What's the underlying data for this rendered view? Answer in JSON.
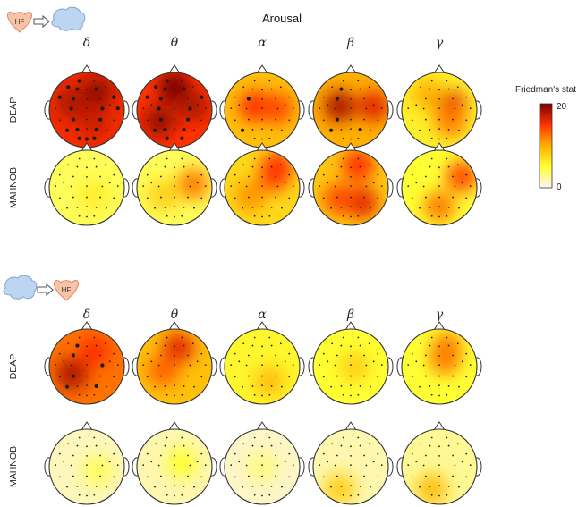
{
  "title": "Arousal",
  "bands": [
    "δ",
    "θ",
    "α",
    "β",
    "γ"
  ],
  "datasets": [
    "DEAP",
    "MAHNOB"
  ],
  "directions": [
    {
      "from": "HF",
      "to": "brain"
    },
    {
      "from": "brain",
      "to": "HF"
    }
  ],
  "colorbar": {
    "label": "Friedman's stat",
    "min": 0,
    "max": 20,
    "stops": [
      "#fdf3f6",
      "#ffff33",
      "#ffb000",
      "#ff3300",
      "#7a0000"
    ]
  },
  "chart_data": {
    "type": "heatmap",
    "title": "Arousal",
    "bands": [
      "δ",
      "θ",
      "α",
      "β",
      "γ"
    ],
    "datasets": [
      "DEAP",
      "MAHNOB"
    ],
    "value_range": [
      0,
      20
    ],
    "panels": [
      {
        "direction": "HF → brain",
        "DEAP": [
          {
            "mean": 15.5,
            "blobs": [
              [
                0.3,
                0.5,
                19
              ],
              [
                -0.4,
                0.2,
                18
              ],
              [
                0.2,
                -0.3,
                17
              ]
            ],
            "sig": 18
          },
          {
            "mean": 15,
            "blobs": [
              [
                0,
                0.6,
                20
              ],
              [
                -0.4,
                -0.3,
                19
              ],
              [
                0.5,
                0.1,
                18
              ]
            ],
            "sig": 16
          },
          {
            "mean": 9,
            "blobs": [
              [
                -0.2,
                0.1,
                15
              ],
              [
                0.4,
                0.05,
                14
              ]
            ],
            "sig": 2
          },
          {
            "mean": 10,
            "blobs": [
              [
                -0.3,
                0.1,
                18
              ],
              [
                0.6,
                0.1,
                16
              ]
            ],
            "sig": 5
          },
          {
            "mean": 6,
            "blobs": [
              [
                0.3,
                0.1,
                16
              ],
              [
                0.3,
                -0.3,
                12
              ],
              [
                -0.3,
                0.4,
                10
              ]
            ],
            "sig": 0
          }
        ],
        "MAHNOB": [
          {
            "mean": 4,
            "blobs": [
              [
                0.2,
                -0.2,
                6
              ]
            ],
            "sig": 0
          },
          {
            "mean": 4,
            "blobs": [
              [
                0.5,
                0.1,
                12
              ],
              [
                -0.3,
                -0.2,
                8
              ]
            ],
            "sig": 0
          },
          {
            "mean": 7.5,
            "blobs": [
              [
                0.3,
                0.3,
                14
              ],
              [
                0.4,
                0.55,
                15
              ],
              [
                -0.3,
                -0.2,
                11
              ]
            ],
            "sig": 0
          },
          {
            "mean": 8.5,
            "blobs": [
              [
                0.3,
                -0.4,
                16
              ],
              [
                0.2,
                0.6,
                15
              ],
              [
                -0.3,
                -0.3,
                14
              ]
            ],
            "sig": 0
          },
          {
            "mean": 5,
            "blobs": [
              [
                0.0,
                -0.5,
                12
              ],
              [
                0.6,
                0.3,
                14
              ]
            ],
            "sig": 0
          }
        ]
      },
      {
        "direction": "brain → HF",
        "DEAP": [
          {
            "mean": 12.5,
            "blobs": [
              [
                -0.4,
                -0.2,
                18
              ],
              [
                0.2,
                0.4,
                15
              ]
            ],
            "sig": 6
          },
          {
            "mean": 9,
            "blobs": [
              [
                0.1,
                0.5,
                16
              ],
              [
                -0.3,
                -0.1,
                13
              ]
            ],
            "sig": 0
          },
          {
            "mean": 5.5,
            "blobs": [
              [
                0.2,
                -0.4,
                9
              ]
            ],
            "sig": 0
          },
          {
            "mean": 5,
            "blobs": [
              [
                0.1,
                0.0,
                8
              ]
            ],
            "sig": 0
          },
          {
            "mean": 5,
            "blobs": [
              [
                0.15,
                0.2,
                12
              ],
              [
                0.2,
                0.5,
                12
              ]
            ],
            "sig": 0
          }
        ],
        "MAHNOB": [
          {
            "mean": 1.5,
            "blobs": [
              [
                0.3,
                -0.1,
                4
              ]
            ],
            "sig": 0
          },
          {
            "mean": 1.8,
            "blobs": [
              [
                0.2,
                0.1,
                5
              ]
            ],
            "sig": 0
          },
          {
            "mean": 1.2,
            "blobs": [
              [
                0.0,
                0.0,
                3
              ]
            ],
            "sig": 0
          },
          {
            "mean": 1.8,
            "blobs": [
              [
                -0.3,
                -0.6,
                8
              ]
            ],
            "sig": 0
          },
          {
            "mean": 2.5,
            "blobs": [
              [
                -0.2,
                -0.6,
                9
              ]
            ],
            "sig": 0
          }
        ]
      }
    ]
  }
}
